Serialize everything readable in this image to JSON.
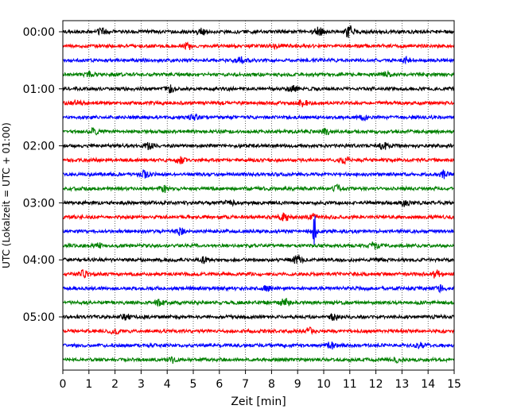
{
  "chart_data": {
    "type": "line",
    "title": "",
    "xlabel": "Zeit  [min]",
    "ylabel": "UTC (Lokalzeit = UTC + 01:00)",
    "xlim": [
      0,
      15
    ],
    "x_ticks": [
      0,
      1,
      2,
      3,
      4,
      5,
      6,
      7,
      8,
      9,
      10,
      11,
      12,
      13,
      14,
      15
    ],
    "y_tick_labels": [
      "00:00",
      "01:00",
      "02:00",
      "03:00",
      "04:00",
      "05:00"
    ],
    "traces_per_hour": 4,
    "minutes_per_trace": 15,
    "trace_colors": [
      "#000000",
      "#ff0000",
      "#0000ff",
      "#008000"
    ],
    "grid": "vertical dotted",
    "legend": "none",
    "series": [
      {
        "start": "00:00",
        "color": "#000000",
        "events": [
          [
            1.5,
            0.5
          ],
          [
            5.3,
            0.5
          ],
          [
            9.8,
            0.6
          ],
          [
            11.0,
            1.1
          ]
        ]
      },
      {
        "start": "00:15",
        "color": "#ff0000",
        "events": [
          [
            4.8,
            0.4
          ],
          [
            8.2,
            0.3
          ]
        ]
      },
      {
        "start": "00:30",
        "color": "#0000ff",
        "events": [
          [
            6.8,
            0.5
          ],
          [
            13.2,
            0.4
          ]
        ]
      },
      {
        "start": "00:45",
        "color": "#008000",
        "events": [
          [
            1.0,
            0.3
          ],
          [
            12.4,
            0.3
          ]
        ]
      },
      {
        "start": "01:00",
        "color": "#000000",
        "events": [
          [
            4.1,
            0.5
          ],
          [
            8.8,
            0.4
          ]
        ]
      },
      {
        "start": "01:15",
        "color": "#ff0000",
        "events": [
          [
            0.5,
            0.4
          ],
          [
            9.2,
            0.5
          ]
        ]
      },
      {
        "start": "01:30",
        "color": "#0000ff",
        "events": [
          [
            5.0,
            0.4
          ],
          [
            11.5,
            0.3
          ]
        ]
      },
      {
        "start": "01:45",
        "color": "#008000",
        "events": [
          [
            1.2,
            0.4
          ],
          [
            10.1,
            0.4
          ]
        ]
      },
      {
        "start": "02:00",
        "color": "#000000",
        "events": [
          [
            12.3,
            0.6
          ],
          [
            3.3,
            0.4
          ]
        ]
      },
      {
        "start": "02:15",
        "color": "#ff0000",
        "events": [
          [
            10.8,
            0.5
          ],
          [
            4.5,
            0.4
          ]
        ]
      },
      {
        "start": "02:30",
        "color": "#0000ff",
        "events": [
          [
            3.1,
            0.5
          ],
          [
            14.6,
            0.5
          ]
        ]
      },
      {
        "start": "02:45",
        "color": "#008000",
        "events": [
          [
            3.9,
            0.4
          ],
          [
            10.5,
            0.4
          ]
        ]
      },
      {
        "start": "03:00",
        "color": "#000000",
        "events": [
          [
            6.4,
            0.5
          ],
          [
            13.1,
            0.4
          ]
        ]
      },
      {
        "start": "03:15",
        "color": "#ff0000",
        "events": [
          [
            8.5,
            0.6
          ],
          [
            9.6,
            0.4
          ]
        ]
      },
      {
        "start": "03:30",
        "color": "#0000ff",
        "events": [
          [
            9.65,
            2.4
          ],
          [
            4.5,
            0.5
          ]
        ]
      },
      {
        "start": "03:45",
        "color": "#008000",
        "events": [
          [
            11.9,
            0.5
          ],
          [
            1.3,
            0.4
          ]
        ]
      },
      {
        "start": "04:00",
        "color": "#000000",
        "events": [
          [
            9.0,
            0.6
          ],
          [
            5.4,
            0.4
          ]
        ]
      },
      {
        "start": "04:15",
        "color": "#ff0000",
        "events": [
          [
            0.8,
            0.5
          ],
          [
            14.3,
            0.5
          ]
        ]
      },
      {
        "start": "04:30",
        "color": "#0000ff",
        "events": [
          [
            7.8,
            0.4
          ],
          [
            14.5,
            0.4
          ]
        ]
      },
      {
        "start": "04:45",
        "color": "#008000",
        "events": [
          [
            8.5,
            0.6
          ],
          [
            3.7,
            0.4
          ]
        ]
      },
      {
        "start": "05:00",
        "color": "#000000",
        "events": [
          [
            10.4,
            0.5
          ],
          [
            2.4,
            0.4
          ]
        ]
      },
      {
        "start": "05:15",
        "color": "#ff0000",
        "events": [
          [
            9.4,
            0.5
          ],
          [
            2.0,
            0.4
          ]
        ]
      },
      {
        "start": "05:30",
        "color": "#0000ff",
        "events": [
          [
            10.3,
            0.5
          ],
          [
            13.7,
            0.5
          ]
        ]
      },
      {
        "start": "05:45",
        "color": "#008000",
        "events": [
          [
            4.2,
            0.4
          ],
          [
            12.8,
            0.4
          ]
        ]
      }
    ]
  }
}
